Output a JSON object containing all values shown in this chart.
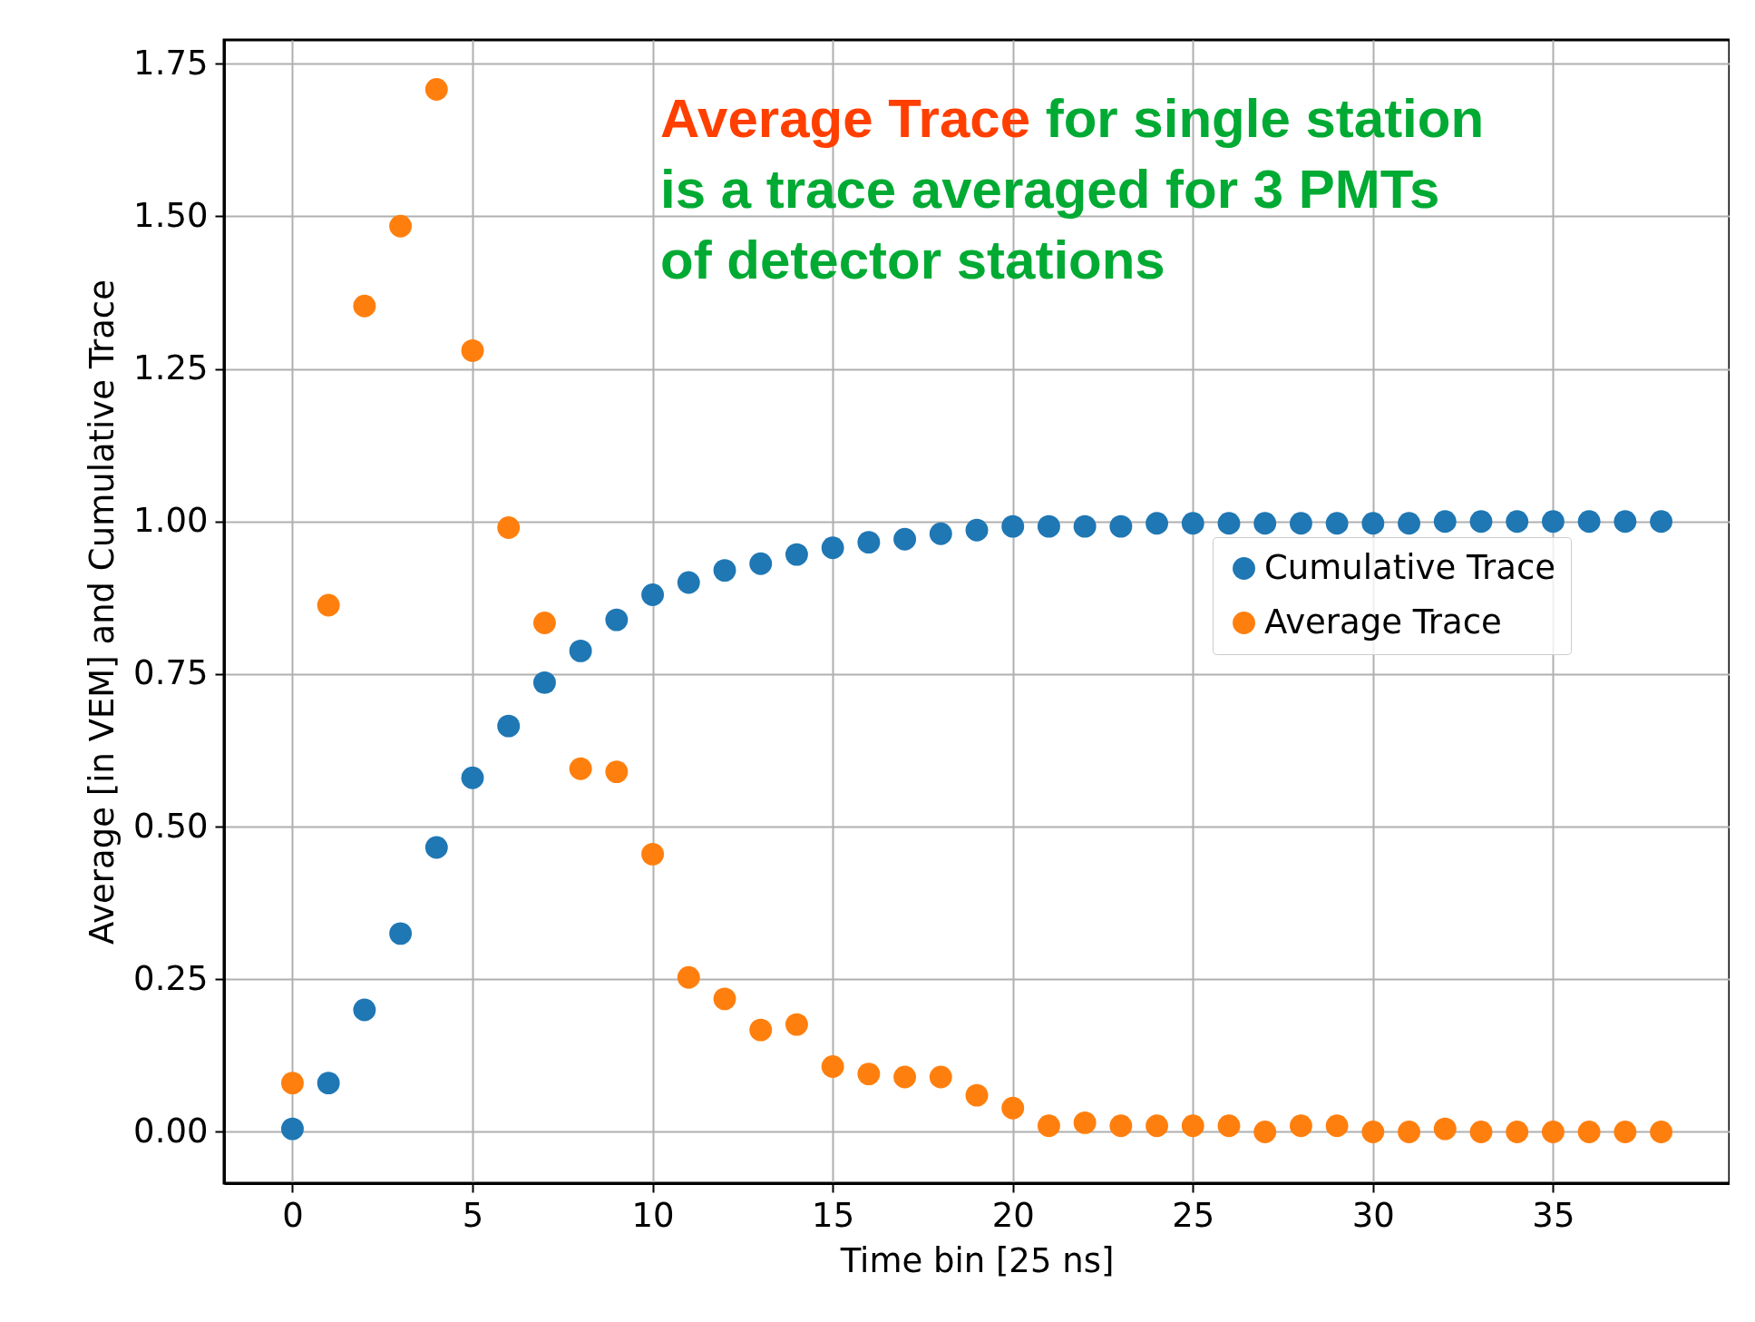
{
  "chart_data": {
    "type": "scatter",
    "xlabel": "Time bin [25 ns]",
    "ylabel": "Average [in VEM] and Cumulative Trace",
    "annotations": [
      "Average Trace",
      "for single station",
      "is a trace averaged for 3 PMTs",
      "of detector stations"
    ],
    "x": [
      0,
      1,
      2,
      3,
      4,
      5,
      6,
      7,
      8,
      9,
      10,
      11,
      12,
      13,
      14,
      15,
      16,
      17,
      18,
      19,
      20,
      21,
      22,
      23,
      24,
      25,
      26,
      27,
      28,
      29,
      30,
      31,
      32,
      33,
      34,
      35,
      36,
      37,
      38
    ],
    "series": [
      {
        "name": "Cumulative Trace",
        "color": "#1f77b4",
        "values": [
          0.005,
          0.08,
          0.2,
          0.325,
          0.466,
          0.58,
          0.665,
          0.736,
          0.788,
          0.839,
          0.88,
          0.9,
          0.92,
          0.931,
          0.946,
          0.957,
          0.966,
          0.971,
          0.98,
          0.986,
          0.992,
          0.992,
          0.992,
          0.992,
          0.997,
          0.997,
          0.997,
          0.997,
          0.997,
          0.997,
          0.997,
          0.997,
          1.0,
          1.0,
          1.0,
          1.0,
          1.0,
          1.0,
          1.0
        ]
      },
      {
        "name": "Average Trace",
        "color": "#ff7f0e",
        "values": [
          0.08,
          0.863,
          1.353,
          1.484,
          1.708,
          1.28,
          0.99,
          0.834,
          0.595,
          0.59,
          0.455,
          0.253,
          0.218,
          0.167,
          0.176,
          0.107,
          0.095,
          0.09,
          0.09,
          0.06,
          0.039,
          0.01,
          0.015,
          0.01,
          0.01,
          0.01,
          0.01,
          0,
          0.01,
          0.01,
          0,
          0,
          0.005,
          0,
          0,
          0,
          0,
          0,
          0
        ]
      }
    ],
    "xlim": [
      -1.9,
      39.9
    ],
    "xticks": [
      0,
      5,
      10,
      15,
      20,
      25,
      30,
      35
    ],
    "ylim": [
      -0.084,
      1.789
    ],
    "yticks": [
      {
        "value": 0,
        "label": "0.00"
      },
      {
        "value": 0.25,
        "label": "0.25"
      },
      {
        "value": 0.5,
        "label": "0.50"
      },
      {
        "value": 0.75,
        "label": "0.75"
      },
      {
        "value": 1,
        "label": "1.00"
      },
      {
        "value": 1.25,
        "label": "1.25"
      },
      {
        "value": 1.5,
        "label": "1.50"
      },
      {
        "value": 1.75,
        "label": "1.75"
      }
    ],
    "grid": true,
    "legend": "right",
    "marker": "circle"
  }
}
